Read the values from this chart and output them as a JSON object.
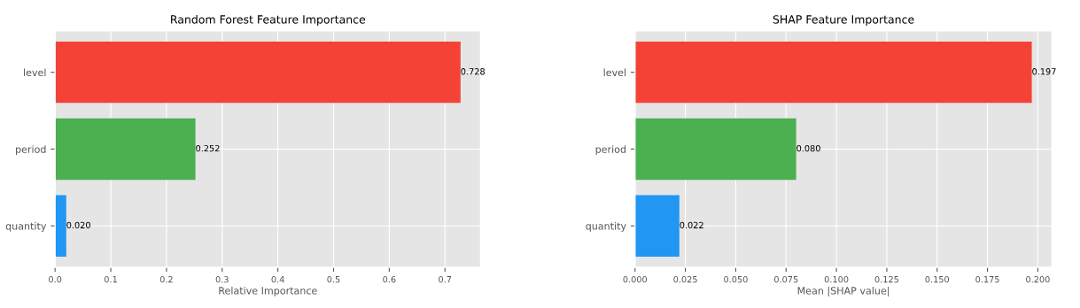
{
  "chart_data": [
    {
      "type": "bar",
      "orientation": "horizontal",
      "title": "Random Forest Feature Importance",
      "xlabel": "Relative Importance",
      "categories": [
        "level",
        "period",
        "quantity"
      ],
      "values": [
        0.728,
        0.252,
        0.02
      ],
      "colors": [
        "#f44336",
        "#4caf50",
        "#2196f3"
      ],
      "xlim": [
        0,
        0.764
      ],
      "xticks": [
        {
          "value": 0,
          "label": "0.0"
        },
        0.1,
        0.2,
        0.3,
        0.4,
        0.5,
        0.6,
        0.7
      ],
      "value_labels": [
        "0.728",
        "0.252",
        "0.020"
      ],
      "grid": true
    },
    {
      "type": "bar",
      "orientation": "horizontal",
      "title": "SHAP Feature Importance",
      "xlabel": "Mean |SHAP value|",
      "categories": [
        "level",
        "period",
        "quantity"
      ],
      "values": [
        0.197,
        0.08,
        0.022
      ],
      "colors": [
        "#f44336",
        "#4caf50",
        "#2196f3"
      ],
      "xlim": [
        0,
        0.207
      ],
      "xticks": [
        {
          "value": 0,
          "label": "0.000"
        },
        0.025,
        {
          "value": 0.05,
          "label": "0.050"
        },
        0.075,
        {
          "value": 0.1,
          "label": "0.100"
        },
        0.125,
        {
          "value": 0.15,
          "label": "0.150"
        },
        0.175,
        {
          "value": 0.2,
          "label": "0.200"
        }
      ],
      "value_labels": [
        "0.197",
        "0.080",
        "0.022"
      ],
      "grid": true
    }
  ]
}
